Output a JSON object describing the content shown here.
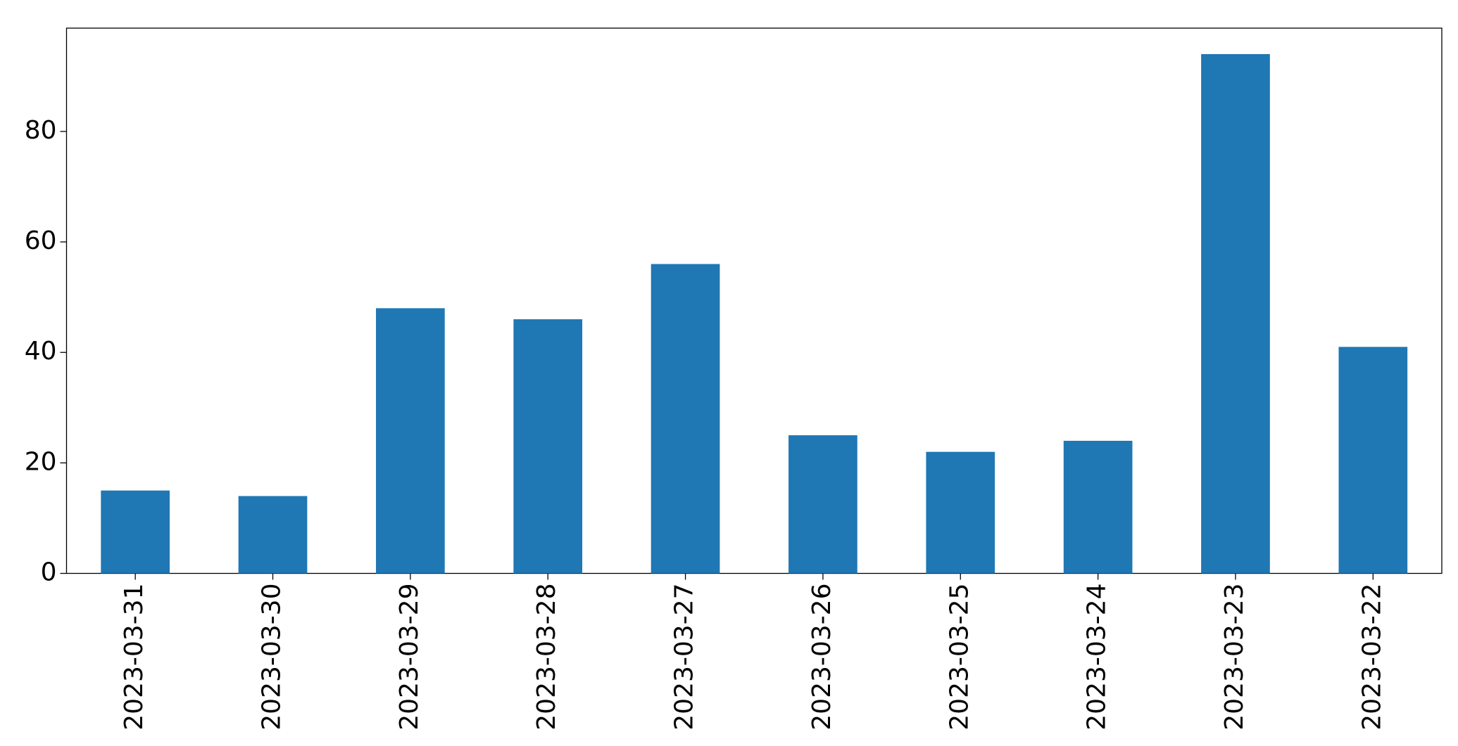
{
  "chart_data": {
    "type": "bar",
    "categories": [
      "2023-03-31",
      "2023-03-30",
      "2023-03-29",
      "2023-03-28",
      "2023-03-27",
      "2023-03-26",
      "2023-03-25",
      "2023-03-24",
      "2023-03-23",
      "2023-03-22"
    ],
    "values": [
      15,
      14,
      48,
      46,
      56,
      25,
      22,
      24,
      94,
      41
    ],
    "color": "#1f77b4",
    "ylim": [
      0,
      98.7
    ],
    "yticks": [
      0,
      20,
      40,
      60,
      80
    ],
    "grid": false
  }
}
